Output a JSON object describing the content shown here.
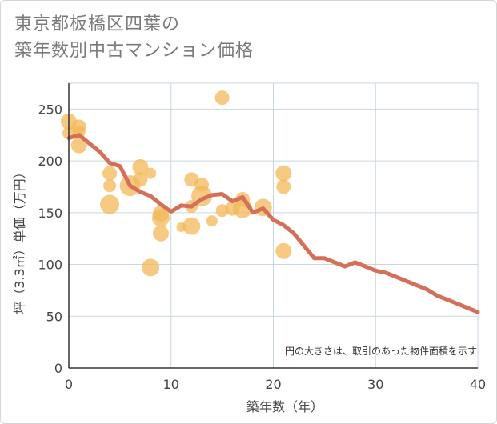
{
  "header": {
    "title_line1": "東京都板橋区四葉の",
    "title_line2": "築年数別中古マンション価格"
  },
  "chart_data": {
    "type": "scatter",
    "xlabel": "築年数（年）",
    "ylabel": "坪（3.3㎡）単価（万円）",
    "note": "円の大きさは、取引のあった物件面積を示す",
    "xlim": [
      0,
      40
    ],
    "ylim": [
      0,
      275
    ],
    "xticks": [
      0,
      10,
      20,
      30,
      40
    ],
    "yticks": [
      0,
      50,
      100,
      150,
      200,
      250
    ],
    "grid": true,
    "colors": {
      "bubble": "#f3b85a",
      "line": "#d4705a",
      "grid": "#c9d6e0"
    },
    "bubbles": [
      {
        "x": 0,
        "y": 238,
        "s": 10
      },
      {
        "x": 0,
        "y": 227,
        "s": 8
      },
      {
        "x": 1,
        "y": 233,
        "s": 9
      },
      {
        "x": 1,
        "y": 228,
        "s": 8
      },
      {
        "x": 1,
        "y": 215,
        "s": 10
      },
      {
        "x": 4,
        "y": 188,
        "s": 9
      },
      {
        "x": 4,
        "y": 176,
        "s": 8
      },
      {
        "x": 4,
        "y": 158,
        "s": 12
      },
      {
        "x": 6,
        "y": 176,
        "s": 13
      },
      {
        "x": 7,
        "y": 194,
        "s": 10
      },
      {
        "x": 7,
        "y": 182,
        "s": 9
      },
      {
        "x": 8,
        "y": 188,
        "s": 7
      },
      {
        "x": 8,
        "y": 97,
        "s": 11
      },
      {
        "x": 9,
        "y": 149,
        "s": 10
      },
      {
        "x": 9,
        "y": 145,
        "s": 11
      },
      {
        "x": 9,
        "y": 130,
        "s": 10
      },
      {
        "x": 11,
        "y": 136,
        "s": 6
      },
      {
        "x": 12,
        "y": 182,
        "s": 9
      },
      {
        "x": 12,
        "y": 156,
        "s": 8
      },
      {
        "x": 12,
        "y": 137,
        "s": 11
      },
      {
        "x": 13,
        "y": 177,
        "s": 9
      },
      {
        "x": 13,
        "y": 166,
        "s": 13
      },
      {
        "x": 14,
        "y": 142,
        "s": 7
      },
      {
        "x": 15,
        "y": 261,
        "s": 9
      },
      {
        "x": 15,
        "y": 152,
        "s": 8
      },
      {
        "x": 16,
        "y": 154,
        "s": 9
      },
      {
        "x": 17,
        "y": 163,
        "s": 9
      },
      {
        "x": 17,
        "y": 154,
        "s": 12
      },
      {
        "x": 19,
        "y": 155,
        "s": 11
      },
      {
        "x": 21,
        "y": 188,
        "s": 10
      },
      {
        "x": 21,
        "y": 175,
        "s": 9
      },
      {
        "x": 21,
        "y": 113,
        "s": 10
      }
    ],
    "series": [
      {
        "x": [
          0,
          1,
          2,
          3,
          4,
          5,
          6,
          7,
          8,
          9,
          10,
          11,
          12,
          13,
          14,
          15,
          16,
          17,
          18,
          19,
          20,
          21,
          22,
          23,
          24,
          25,
          26,
          27,
          28,
          29,
          30,
          31,
          32,
          33,
          34,
          35,
          36,
          37,
          38,
          39,
          40
        ],
        "y": [
          222,
          225,
          217,
          209,
          198,
          195,
          176,
          170,
          166,
          158,
          151,
          157,
          156,
          163,
          167,
          168,
          161,
          165,
          150,
          154,
          143,
          138,
          130,
          118,
          106,
          106,
          102,
          98,
          102,
          98,
          94,
          92,
          88,
          84,
          80,
          76,
          70,
          66,
          62,
          58,
          54
        ]
      }
    ]
  }
}
